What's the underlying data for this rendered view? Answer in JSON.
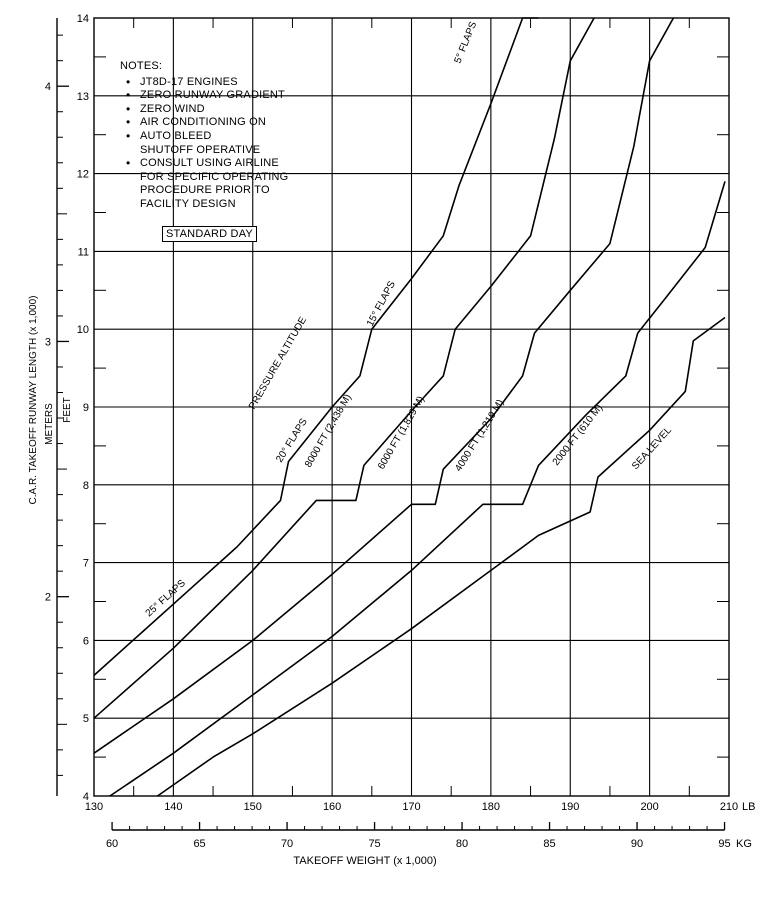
{
  "chart_data": {
    "type": "line",
    "title": "",
    "xlabel": "TAKEOFF WEIGHT (x 1,000)",
    "ylabel": "C.A.R. TAKEOFF RUNWAY LENGTH (x 1,000)",
    "x_unit_primary": "LB",
    "x_unit_secondary": "KG",
    "y_unit_primary": "FEET",
    "y_unit_secondary": "METERS",
    "xlim": [
      130,
      210
    ],
    "ylim": [
      4,
      14
    ],
    "grid": true,
    "x_ticks": [
      "130",
      "140",
      "150",
      "160",
      "170",
      "180",
      "190",
      "200",
      "210"
    ],
    "y_ticks": [
      "4",
      "5",
      "6",
      "7",
      "8",
      "9",
      "10",
      "11",
      "12",
      "13",
      "14"
    ],
    "kg_ticks": [
      "60",
      "65",
      "70",
      "75",
      "80",
      "85",
      "90",
      "95"
    ],
    "meter_ticks": [
      "2",
      "3",
      "4"
    ],
    "series": [
      {
        "name": "8000 FT (2,438 M)",
        "x": [
          130,
          136,
          142,
          148,
          153.5,
          154.5,
          160,
          163.5,
          165,
          170,
          174,
          176,
          180,
          184,
          186
        ],
        "y": [
          5.55,
          6.1,
          6.65,
          7.2,
          7.8,
          8.3,
          9.0,
          9.4,
          10.0,
          10.65,
          11.2,
          11.85,
          12.9,
          14.0,
          14.0
        ]
      },
      {
        "name": "6000 FT (1,829 M)",
        "x": [
          130,
          140,
          150,
          158,
          163,
          164,
          170,
          174,
          175.5,
          180,
          185,
          188,
          190,
          193
        ],
        "y": [
          5.0,
          5.9,
          6.9,
          7.8,
          7.8,
          8.25,
          8.95,
          9.4,
          10.0,
          10.55,
          11.2,
          12.45,
          13.45,
          14.0
        ]
      },
      {
        "name": "4000 FT (1,219 M)",
        "x": [
          130,
          140,
          150,
          160,
          170,
          173,
          174,
          180,
          184,
          185.5,
          190,
          195,
          198,
          200,
          203
        ],
        "y": [
          4.55,
          5.25,
          6.0,
          6.85,
          7.75,
          7.75,
          8.2,
          8.85,
          9.4,
          9.95,
          10.5,
          11.1,
          12.35,
          13.45,
          14.0
        ]
      },
      {
        "name": "2000 FT (610 M)",
        "x": [
          132,
          140,
          150,
          160,
          170,
          179,
          184,
          186,
          192,
          197,
          198.5,
          202,
          207,
          209.5
        ],
        "y": [
          4.0,
          4.55,
          5.3,
          6.05,
          6.9,
          7.75,
          7.75,
          8.25,
          8.9,
          9.4,
          9.95,
          10.4,
          11.05,
          11.9
        ]
      },
      {
        "name": "SEA LEVEL",
        "x": [
          138,
          145,
          150,
          160,
          170,
          180,
          186,
          192.5,
          193.5,
          200,
          204.5,
          205.5,
          209.5
        ],
        "y": [
          4.0,
          4.5,
          4.8,
          5.45,
          6.15,
          6.9,
          7.35,
          7.65,
          8.1,
          8.7,
          9.2,
          9.85,
          10.15
        ]
      }
    ],
    "flap_labels": [
      "25° FLAPS",
      "20° FLAPS",
      "15° FLAPS",
      "5° FLAPS"
    ],
    "pressure_altitude_label": "PRESSURE ALTITUDE",
    "notes_header": "NOTES:",
    "notes": [
      "JT8D-17 ENGINES",
      "ZERO RUNWAY GRADIENT",
      "ZERO WIND",
      "AIR CONDITIONING ON",
      "AUTO BLEED\nSHUTOFF OPERATIVE",
      "CONSULT USING AIRLINE\nFOR SPECIFIC OPERATING\nPROCEDURE PRIOR TO\nFACILITY DESIGN"
    ],
    "condition_label": "STANDARD DAY"
  }
}
